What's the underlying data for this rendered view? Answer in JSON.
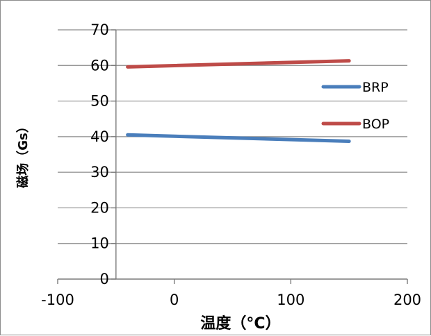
{
  "chart_data": {
    "type": "line",
    "title": "",
    "xlabel": "温度（°C）",
    "ylabel": "磁场（Gs）",
    "xlim": [
      -100,
      200
    ],
    "ylim": [
      0,
      70
    ],
    "xticks": [
      -100,
      0,
      100,
      200
    ],
    "yticks": [
      0,
      10,
      20,
      30,
      40,
      50,
      60,
      70
    ],
    "x_tick_labels": [
      "-100",
      "0",
      "100",
      "200"
    ],
    "y_tick_labels": [
      "0",
      "10",
      "20",
      "30",
      "40",
      "50",
      "60",
      "70"
    ],
    "grid": "horizontal",
    "legend_position": "right",
    "series": [
      {
        "name": "BRP",
        "color": "#4a7ebb",
        "x": [
          -40,
          150
        ],
        "y": [
          40.5,
          38.7
        ]
      },
      {
        "name": "BOP",
        "color": "#be4b48",
        "x": [
          -40,
          150
        ],
        "y": [
          59.6,
          61.3
        ]
      }
    ]
  }
}
